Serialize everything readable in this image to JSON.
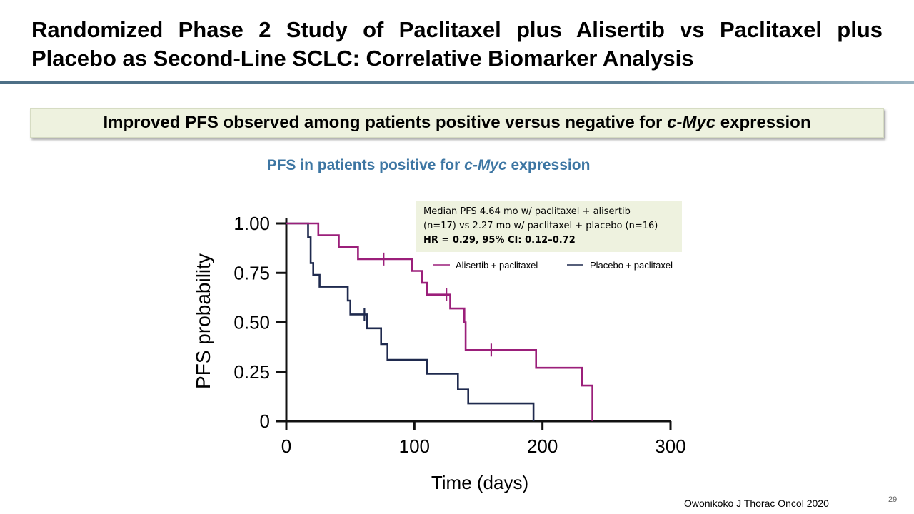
{
  "slide": {
    "title": "Randomized Phase 2 Study of Paclitaxel plus Alisertib vs Paclitaxel plus Placebo as Second-Line SCLC: Correlative Biomarker Analysis",
    "callout": {
      "before": "Improved PFS observed among patients positive versus negative for ",
      "italic": "c-Myc",
      "after": " expression"
    },
    "chart_heading": {
      "before": "PFS in patients positive for ",
      "italic": "c-Myc",
      "after": " expression"
    },
    "median_box": {
      "line1": "Median PFS 4.64 mo w/ paclitaxel + alisertib",
      "line2": "(n=17) vs 2.27 mo w/ paclitaxel + placebo (n=16)",
      "line3": "HR = 0.29, 95% CI: 0.12–0.72"
    },
    "citation": "Owonikoko J Thorac Oncol 2020",
    "page_number": "29"
  },
  "chart_data": {
    "type": "line",
    "subtype": "kaplan-meier-step",
    "xlabel": "Time (days)",
    "ylabel": "PFS probability",
    "xlim": [
      0,
      300
    ],
    "ylim": [
      0,
      1
    ],
    "x_ticks": [
      0,
      100,
      200,
      300
    ],
    "x_tick_labels": [
      "0",
      "100",
      "200",
      "300"
    ],
    "y_ticks": [
      0,
      0.25,
      0.5,
      0.75,
      1.0
    ],
    "y_tick_labels": [
      "0",
      "0.25",
      "0.50",
      "0.75",
      "1.00"
    ],
    "grid": false,
    "legend": "top-right",
    "series": [
      {
        "name": "Alisertib + paclitaxel",
        "color": "#9b1f7a",
        "points": [
          [
            0,
            1.0
          ],
          [
            25,
            1.0
          ],
          [
            25,
            0.94
          ],
          [
            41,
            0.94
          ],
          [
            41,
            0.88
          ],
          [
            56,
            0.88
          ],
          [
            56,
            0.82
          ],
          [
            98,
            0.82
          ],
          [
            98,
            0.76
          ],
          [
            106,
            0.76
          ],
          [
            106,
            0.7
          ],
          [
            110,
            0.7
          ],
          [
            110,
            0.64
          ],
          [
            128,
            0.64
          ],
          [
            128,
            0.57
          ],
          [
            139,
            0.57
          ],
          [
            139,
            0.5
          ],
          [
            140,
            0.5
          ],
          [
            140,
            0.36
          ],
          [
            195,
            0.36
          ],
          [
            195,
            0.27
          ],
          [
            231,
            0.27
          ],
          [
            231,
            0.18
          ],
          [
            239,
            0.18
          ],
          [
            239,
            0.0
          ]
        ],
        "censor_points": [
          [
            76,
            0.82
          ],
          [
            125,
            0.64
          ],
          [
            160,
            0.36
          ]
        ]
      },
      {
        "name": "Placebo + paclitaxel",
        "color": "#1f2a4e",
        "points": [
          [
            0,
            1.0
          ],
          [
            17,
            1.0
          ],
          [
            17,
            0.93
          ],
          [
            19,
            0.93
          ],
          [
            19,
            0.8
          ],
          [
            21,
            0.8
          ],
          [
            21,
            0.74
          ],
          [
            26,
            0.74
          ],
          [
            26,
            0.68
          ],
          [
            48,
            0.68
          ],
          [
            48,
            0.61
          ],
          [
            50,
            0.61
          ],
          [
            50,
            0.54
          ],
          [
            63,
            0.54
          ],
          [
            63,
            0.47
          ],
          [
            74,
            0.47
          ],
          [
            74,
            0.39
          ],
          [
            79,
            0.39
          ],
          [
            79,
            0.31
          ],
          [
            110,
            0.31
          ],
          [
            110,
            0.24
          ],
          [
            134,
            0.24
          ],
          [
            134,
            0.16
          ],
          [
            142,
            0.16
          ],
          [
            142,
            0.09
          ],
          [
            193,
            0.09
          ],
          [
            193,
            0.0
          ]
        ],
        "censor_points": [
          [
            61,
            0.54
          ]
        ]
      }
    ]
  }
}
